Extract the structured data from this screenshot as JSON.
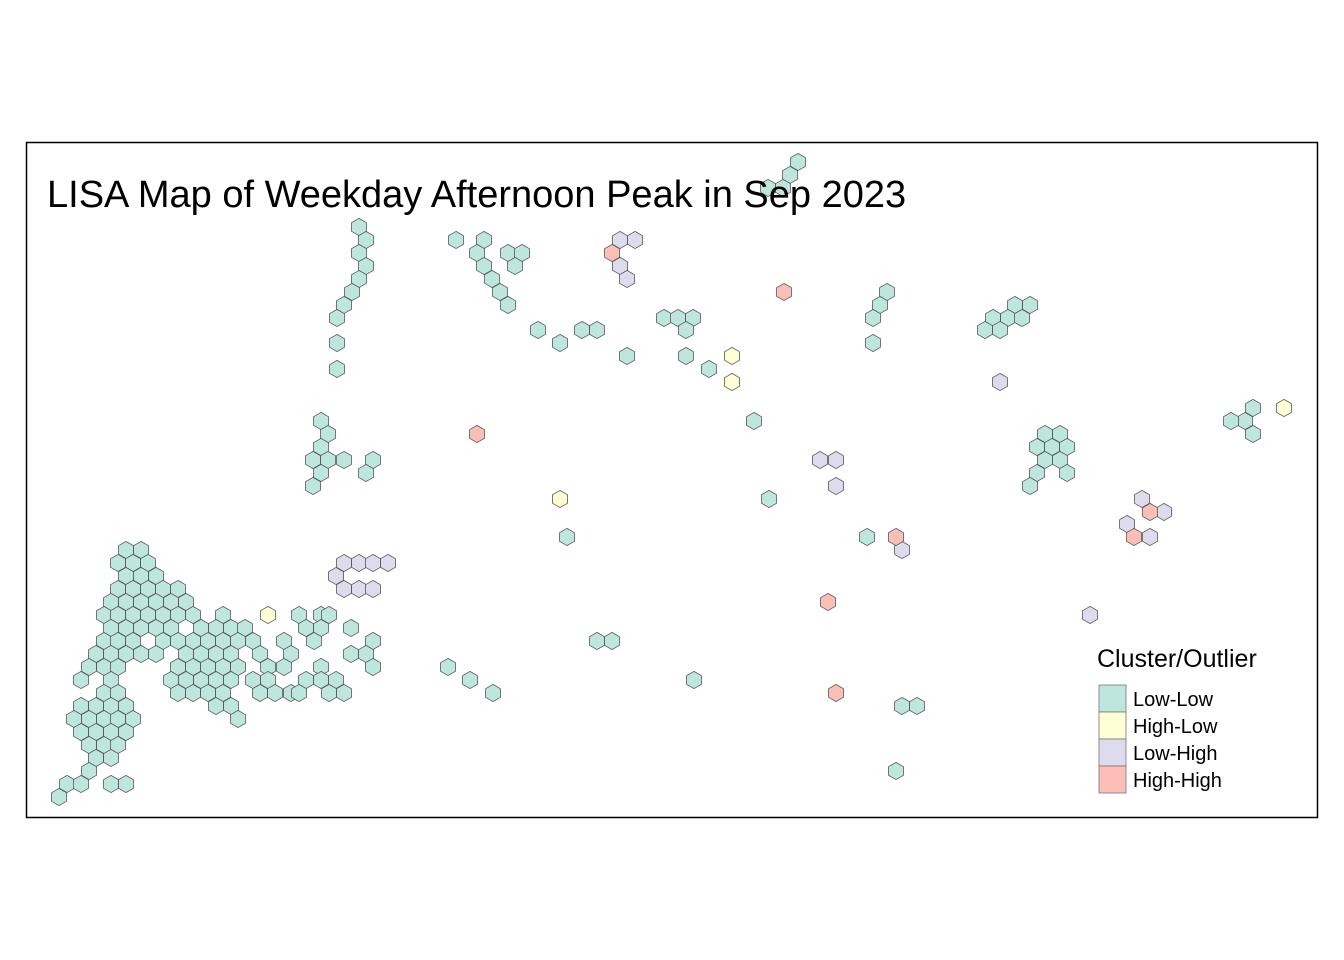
{
  "map": {
    "title": "LISA Map of Weekday Afternoon Peak in Sep 2023"
  },
  "legend": {
    "title": "Cluster/Outlier",
    "items": [
      {
        "key": "LL",
        "label": "Low-Low",
        "color": "#bde6dc"
      },
      {
        "key": "HL",
        "label": "High-Low",
        "color": "#ffffd6"
      },
      {
        "key": "LH",
        "label": "Low-High",
        "color": "#dedbed"
      },
      {
        "key": "HH",
        "label": "High-High",
        "color": "#fbbfb8"
      }
    ]
  },
  "hex_groups": {
    "LL": [
      [
        798,
        162
      ],
      [
        790,
        175
      ],
      [
        783,
        188
      ],
      [
        768,
        188
      ],
      [
        359,
        227
      ],
      [
        366,
        240
      ],
      [
        359,
        253
      ],
      [
        366,
        266
      ],
      [
        359,
        279
      ],
      [
        352,
        292
      ],
      [
        344,
        305
      ],
      [
        337,
        318
      ],
      [
        337,
        343
      ],
      [
        337,
        369
      ],
      [
        456,
        240
      ],
      [
        484,
        240
      ],
      [
        477,
        253
      ],
      [
        508,
        253
      ],
      [
        522,
        253
      ],
      [
        484,
        266
      ],
      [
        515,
        266
      ],
      [
        492,
        279
      ],
      [
        500,
        292
      ],
      [
        508,
        305
      ],
      [
        538,
        330
      ],
      [
        560,
        343
      ],
      [
        582,
        330
      ],
      [
        597,
        330
      ],
      [
        627,
        356
      ],
      [
        664,
        318
      ],
      [
        678,
        318
      ],
      [
        693,
        318
      ],
      [
        686,
        330
      ],
      [
        686,
        356
      ],
      [
        709,
        369
      ],
      [
        887,
        292
      ],
      [
        880,
        305
      ],
      [
        873,
        318
      ],
      [
        873,
        343
      ],
      [
        1015,
        305
      ],
      [
        1030,
        305
      ],
      [
        1008,
        318
      ],
      [
        1022,
        318
      ],
      [
        993,
        318
      ],
      [
        985,
        330
      ],
      [
        1000,
        330
      ],
      [
        1253,
        408
      ],
      [
        1245,
        421
      ],
      [
        1231,
        421
      ],
      [
        1253,
        434
      ],
      [
        754,
        421
      ],
      [
        769,
        499
      ],
      [
        867,
        537
      ],
      [
        321,
        421
      ],
      [
        328,
        434
      ],
      [
        321,
        447
      ],
      [
        313,
        460
      ],
      [
        328,
        460
      ],
      [
        344,
        460
      ],
      [
        373,
        460
      ],
      [
        321,
        473
      ],
      [
        366,
        473
      ],
      [
        313,
        486
      ],
      [
        1045,
        434
      ],
      [
        1060,
        434
      ],
      [
        1037,
        447
      ],
      [
        1052,
        447
      ],
      [
        1067,
        447
      ],
      [
        1045,
        460
      ],
      [
        1060,
        460
      ],
      [
        1037,
        473
      ],
      [
        1067,
        473
      ],
      [
        1030,
        486
      ],
      [
        567,
        537
      ],
      [
        597,
        641
      ],
      [
        612,
        641
      ],
      [
        448,
        667
      ],
      [
        470,
        680
      ],
      [
        493,
        693
      ],
      [
        694,
        680
      ],
      [
        902,
        706
      ],
      [
        917,
        706
      ],
      [
        896,
        771
      ],
      [
        126,
        550
      ],
      [
        141,
        550
      ],
      [
        118,
        563
      ],
      [
        133,
        563
      ],
      [
        148,
        563
      ],
      [
        126,
        576
      ],
      [
        141,
        576
      ],
      [
        156,
        576
      ],
      [
        118,
        589
      ],
      [
        133,
        589
      ],
      [
        148,
        589
      ],
      [
        163,
        589
      ],
      [
        178,
        589
      ],
      [
        111,
        602
      ],
      [
        126,
        602
      ],
      [
        141,
        602
      ],
      [
        156,
        602
      ],
      [
        171,
        602
      ],
      [
        186,
        602
      ],
      [
        104,
        615
      ],
      [
        118,
        615
      ],
      [
        133,
        615
      ],
      [
        148,
        615
      ],
      [
        163,
        615
      ],
      [
        178,
        615
      ],
      [
        193,
        615
      ],
      [
        223,
        615
      ],
      [
        111,
        628
      ],
      [
        126,
        628
      ],
      [
        141,
        628
      ],
      [
        156,
        628
      ],
      [
        171,
        628
      ],
      [
        201,
        628
      ],
      [
        216,
        628
      ],
      [
        231,
        628
      ],
      [
        245,
        628
      ],
      [
        104,
        641
      ],
      [
        118,
        641
      ],
      [
        133,
        641
      ],
      [
        163,
        641
      ],
      [
        178,
        641
      ],
      [
        193,
        641
      ],
      [
        208,
        641
      ],
      [
        223,
        641
      ],
      [
        238,
        641
      ],
      [
        253,
        641
      ],
      [
        96,
        654
      ],
      [
        111,
        654
      ],
      [
        126,
        654
      ],
      [
        141,
        654
      ],
      [
        156,
        654
      ],
      [
        186,
        654
      ],
      [
        201,
        654
      ],
      [
        216,
        654
      ],
      [
        231,
        654
      ],
      [
        260,
        654
      ],
      [
        89,
        667
      ],
      [
        104,
        667
      ],
      [
        118,
        667
      ],
      [
        178,
        667
      ],
      [
        193,
        667
      ],
      [
        208,
        667
      ],
      [
        223,
        667
      ],
      [
        238,
        667
      ],
      [
        268,
        667
      ],
      [
        81,
        680
      ],
      [
        111,
        680
      ],
      [
        171,
        680
      ],
      [
        186,
        680
      ],
      [
        201,
        680
      ],
      [
        216,
        680
      ],
      [
        231,
        680
      ],
      [
        253,
        680
      ],
      [
        268,
        680
      ],
      [
        104,
        693
      ],
      [
        118,
        693
      ],
      [
        178,
        693
      ],
      [
        193,
        693
      ],
      [
        208,
        693
      ],
      [
        223,
        693
      ],
      [
        260,
        693
      ],
      [
        275,
        693
      ],
      [
        81,
        706
      ],
      [
        96,
        706
      ],
      [
        111,
        706
      ],
      [
        126,
        706
      ],
      [
        216,
        706
      ],
      [
        231,
        706
      ],
      [
        74,
        719
      ],
      [
        89,
        719
      ],
      [
        104,
        719
      ],
      [
        118,
        719
      ],
      [
        133,
        719
      ],
      [
        238,
        719
      ],
      [
        81,
        732
      ],
      [
        96,
        732
      ],
      [
        111,
        732
      ],
      [
        126,
        732
      ],
      [
        89,
        745
      ],
      [
        104,
        745
      ],
      [
        118,
        745
      ],
      [
        96,
        758
      ],
      [
        111,
        758
      ],
      [
        89,
        771
      ],
      [
        67,
        784
      ],
      [
        81,
        784
      ],
      [
        111,
        784
      ],
      [
        126,
        784
      ],
      [
        59,
        797
      ],
      [
        299,
        615
      ],
      [
        321,
        615
      ],
      [
        329,
        615
      ],
      [
        306,
        628
      ],
      [
        321,
        628
      ],
      [
        284,
        641
      ],
      [
        314,
        641
      ],
      [
        373,
        641
      ],
      [
        291,
        654
      ],
      [
        351,
        628
      ],
      [
        351,
        654
      ],
      [
        366,
        654
      ],
      [
        284,
        667
      ],
      [
        321,
        667
      ],
      [
        373,
        667
      ],
      [
        306,
        680
      ],
      [
        321,
        680
      ],
      [
        336,
        680
      ],
      [
        291,
        693
      ],
      [
        299,
        693
      ],
      [
        329,
        693
      ],
      [
        344,
        693
      ]
    ],
    "HL": [
      [
        732,
        356
      ],
      [
        732,
        382
      ],
      [
        560,
        499
      ],
      [
        268,
        615
      ],
      [
        1284,
        408
      ]
    ],
    "LH": [
      [
        620,
        240
      ],
      [
        635,
        240
      ],
      [
        620,
        266
      ],
      [
        627,
        279
      ],
      [
        1000,
        382
      ],
      [
        820,
        460
      ],
      [
        836,
        460
      ],
      [
        836,
        486
      ],
      [
        902,
        550
      ],
      [
        1142,
        499
      ],
      [
        1164,
        512
      ],
      [
        1127,
        524
      ],
      [
        1150,
        537
      ],
      [
        1090,
        615
      ],
      [
        344,
        563
      ],
      [
        359,
        563
      ],
      [
        373,
        563
      ],
      [
        388,
        563
      ],
      [
        336,
        576
      ],
      [
        344,
        589
      ],
      [
        359,
        589
      ],
      [
        373,
        589
      ]
    ],
    "HH": [
      [
        612,
        253
      ],
      [
        784,
        292
      ],
      [
        477,
        434
      ],
      [
        896,
        537
      ],
      [
        1150,
        512
      ],
      [
        1134,
        537
      ],
      [
        828,
        602
      ],
      [
        836,
        693
      ]
    ]
  }
}
